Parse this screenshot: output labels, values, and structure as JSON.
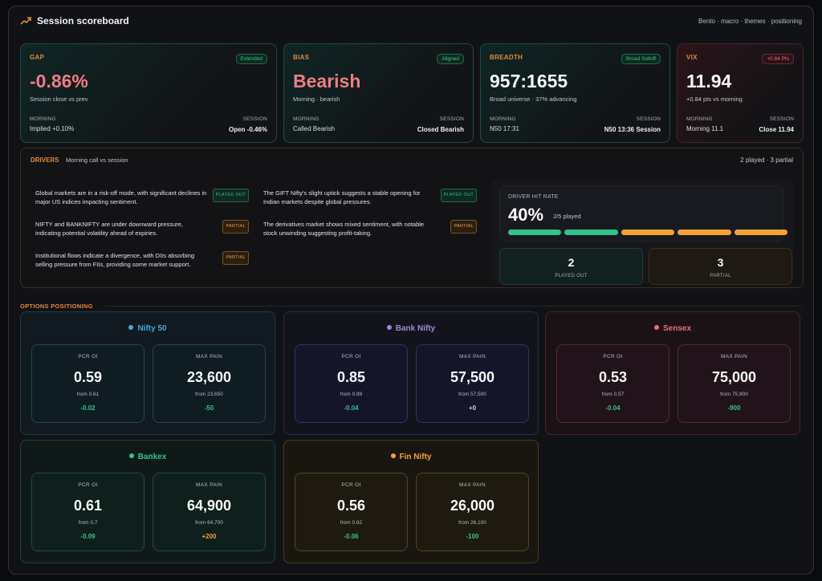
{
  "header": {
    "title": "Session scoreboard",
    "breadcrumb": "Bento · macro · themes · positioning"
  },
  "kpis": [
    {
      "label": "GAP",
      "badge": "Extended",
      "value": "-0.86%",
      "sub": "Session close vs prev",
      "morning_label": "MORNING",
      "session_label": "SESSION",
      "morning_value": "Implied +0.10%",
      "session_value": "Open -0.46%"
    },
    {
      "label": "BIAS",
      "badge": "Aligned",
      "value": "Bearish",
      "sub": "Morning · bearish",
      "morning_label": "MORNING",
      "session_label": "SESSION",
      "morning_value": "Called Bearish",
      "session_value": "Closed Bearish"
    },
    {
      "label": "BREADTH",
      "badge": "Broad Selloff",
      "value": "957:1655",
      "sub": "Broad universe · 37% advancing",
      "morning_label": "MORNING",
      "session_label": "SESSION",
      "morning_value": "N50 17:31",
      "session_value": "N50 13:36 Session"
    },
    {
      "label": "VIX",
      "badge": "+0.84 Pts",
      "value": "11.94",
      "sub": "+0.84 pts vs morning",
      "morning_label": "MORNING",
      "session_label": "SESSION",
      "morning_value": "Morning 11.1",
      "session_value": "Close 11.94"
    }
  ],
  "drivers": {
    "title": "DRIVERS",
    "subtitle": "Morning call vs session",
    "count": "2 played · 3 partial",
    "items": [
      {
        "text": "Global markets are in a risk-off mode, with significant declines in major US indices impacting sentiment.",
        "tag": "PLAYED OUT"
      },
      {
        "text": "The GIFT Nifty's slight uptick suggests a stable opening for Indian markets despite global pressures.",
        "tag": "PLAYED OUT"
      },
      {
        "text": "NIFTY and BANKNIFTY are under downward pressure, indicating potential volatility ahead of expiries.",
        "tag": "PARTIAL"
      },
      {
        "text": "The derivatives market shows mixed sentiment, with notable stock unwinding suggesting profit-taking.",
        "tag": "PARTIAL"
      },
      {
        "text": "Institutional flows indicate a divergence, with DIIs absorbing selling pressure from FIIs, providing some market support.",
        "tag": "PARTIAL"
      }
    ],
    "hit_rate": {
      "label": "DRIVER HIT RATE",
      "value": "40%",
      "of": "2/5 played",
      "segments": [
        "played",
        "played",
        "partial",
        "partial",
        "partial"
      ],
      "played_count": "2",
      "played_label": "PLAYED OUT",
      "partial_count": "3",
      "partial_label": "PARTIAL"
    }
  },
  "options": {
    "title": "OPTIONS POSITIONING",
    "pcr_label": "PCR OI",
    "maxpain_label": "MAX PAIN",
    "cards": [
      {
        "name": "Nifty 50",
        "pcr": "0.59",
        "pcr_from": "from 0.61",
        "pcr_delta": "-0.02",
        "mp": "23,600",
        "mp_from": "from 23,650",
        "mp_delta": "-50",
        "accent": "#4aa3df"
      },
      {
        "name": "Bank Nifty",
        "pcr": "0.85",
        "pcr_from": "from 0.89",
        "pcr_delta": "-0.04",
        "mp": "57,500",
        "mp_from": "from 57,500",
        "mp_delta": "+0",
        "accent": "#9b8ad8"
      },
      {
        "name": "Sensex",
        "pcr": "0.53",
        "pcr_from": "from 0.57",
        "pcr_delta": "-0.04",
        "mp": "75,000",
        "mp_from": "from 75,900",
        "mp_delta": "-900",
        "accent": "#ef6b7a"
      },
      {
        "name": "Bankex",
        "pcr": "0.61",
        "pcr_from": "from 0.7",
        "pcr_delta": "-0.09",
        "mp": "64,900",
        "mp_from": "from 64,700",
        "mp_delta": "+200",
        "accent": "#36c08d"
      },
      {
        "name": "Fin Nifty",
        "pcr": "0.56",
        "pcr_from": "from 0.62",
        "pcr_delta": "-0.06",
        "mp": "26,000",
        "mp_from": "from 26,100",
        "mp_delta": "-100",
        "accent": "#f2a236"
      }
    ]
  },
  "colors": {
    "accent_orange": "#e08a3a",
    "positive_green": "#35c28a",
    "negative_red": "#ef6b7a",
    "partial_amber": "#f2a236"
  }
}
